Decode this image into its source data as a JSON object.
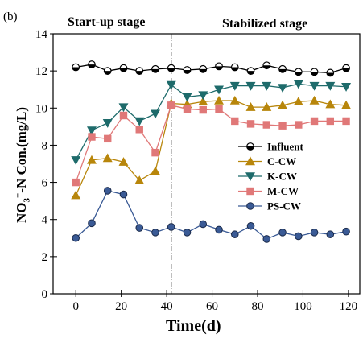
{
  "panel_label": "(b)",
  "stages": {
    "left": "Start-up stage",
    "right": "Stabilized stage"
  },
  "chart_data": {
    "type": "line",
    "xlabel": "Time(d)",
    "ylabel_parts": {
      "pre": "NO",
      "sub": "3",
      "sup": "−",
      "post": "-N Con.(mg/L)"
    },
    "xlim": [
      -10,
      125
    ],
    "ylim": [
      0,
      14
    ],
    "xticks": [
      0,
      20,
      40,
      60,
      80,
      100,
      120
    ],
    "yticks": [
      0,
      2,
      4,
      6,
      8,
      10,
      12,
      14
    ],
    "stage_divider_x": 42,
    "legend_position": "right-middle",
    "series": [
      {
        "name": "Influent",
        "color": "#000000",
        "marker": "half-circle",
        "x": [
          0,
          7,
          14,
          21,
          28,
          35,
          42,
          49,
          56,
          63,
          70,
          77,
          84,
          91,
          98,
          105,
          112,
          119
        ],
        "y": [
          12.2,
          12.35,
          12.0,
          12.15,
          12.0,
          12.1,
          12.15,
          12.05,
          12.1,
          12.25,
          12.2,
          12.0,
          12.3,
          12.1,
          11.95,
          11.95,
          11.9,
          12.15
        ]
      },
      {
        "name": "C-CW",
        "color": "#b8860b",
        "marker": "triangle-up",
        "x": [
          0,
          7,
          14,
          21,
          28,
          35,
          42,
          49,
          56,
          63,
          70,
          77,
          84,
          91,
          98,
          105,
          112,
          119
        ],
        "y": [
          5.3,
          7.2,
          7.3,
          7.1,
          6.1,
          6.6,
          10.25,
          10.2,
          10.35,
          10.4,
          10.4,
          10.05,
          10.05,
          10.15,
          10.35,
          10.4,
          10.2,
          10.15
        ]
      },
      {
        "name": "K-CW",
        "color": "#1e6b6b",
        "marker": "triangle-down",
        "x": [
          0,
          7,
          14,
          21,
          28,
          35,
          42,
          49,
          56,
          63,
          70,
          77,
          84,
          91,
          98,
          105,
          112,
          119
        ],
        "y": [
          7.2,
          8.8,
          9.2,
          10.05,
          9.3,
          9.7,
          11.25,
          10.6,
          10.7,
          11.0,
          11.2,
          11.2,
          11.2,
          11.1,
          11.3,
          11.2,
          11.2,
          11.15
        ]
      },
      {
        "name": "M-CW",
        "color": "#e07878",
        "marker": "square",
        "x": [
          0,
          7,
          14,
          21,
          28,
          35,
          42,
          49,
          56,
          63,
          70,
          77,
          84,
          91,
          98,
          105,
          112,
          119
        ],
        "y": [
          6.0,
          8.45,
          8.35,
          9.6,
          8.85,
          7.6,
          10.15,
          9.95,
          9.9,
          9.95,
          9.3,
          9.15,
          9.1,
          9.05,
          9.1,
          9.3,
          9.3,
          9.3
        ]
      },
      {
        "name": "PS-CW",
        "color": "#3a5a95",
        "marker": "circle",
        "x": [
          0,
          7,
          14,
          21,
          28,
          35,
          42,
          49,
          56,
          63,
          70,
          77,
          84,
          91,
          98,
          105,
          112,
          119
        ],
        "y": [
          3.0,
          3.8,
          5.55,
          5.35,
          3.55,
          3.3,
          3.6,
          3.3,
          3.75,
          3.45,
          3.2,
          3.65,
          2.95,
          3.3,
          3.1,
          3.3,
          3.2,
          3.35
        ]
      }
    ]
  }
}
